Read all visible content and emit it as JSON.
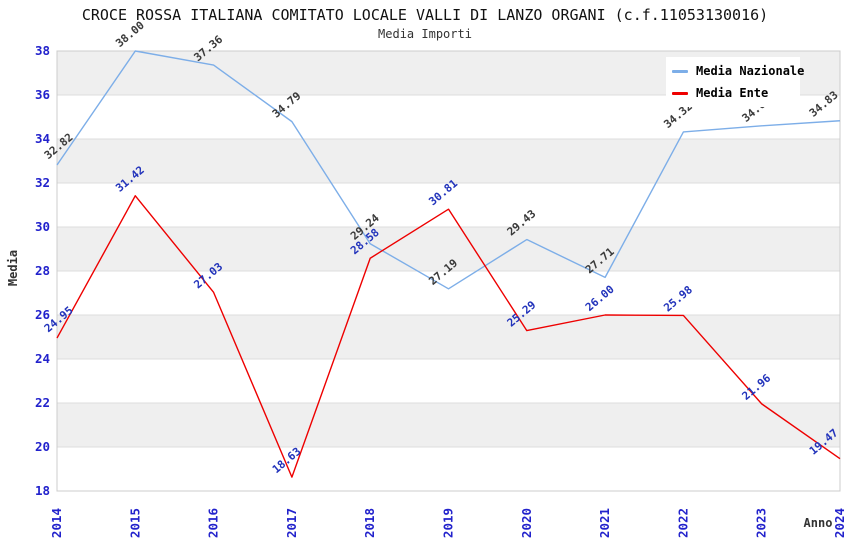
{
  "title": "CROCE ROSSA ITALIANA COMITATO LOCALE VALLI DI LANZO ORGANI (c.f.11053130016)",
  "subtitle": "Media Importi",
  "axes": {
    "y_label": "Media",
    "x_label": "Anno",
    "y_ticks": [
      18,
      20,
      22,
      24,
      26,
      28,
      30,
      32,
      34,
      36,
      38
    ],
    "x_ticks": [
      "2014",
      "2015",
      "2016",
      "2017",
      "2018",
      "2019",
      "2020",
      "2021",
      "2022",
      "2023",
      "2024"
    ],
    "tick_color": "#2222CC"
  },
  "legend": [
    {
      "name": "Media Nazionale",
      "color": "#7DAEE8"
    },
    {
      "name": "Media Ente",
      "color": "#EE0000"
    }
  ],
  "colors": {
    "stripe": "#EFEFEF",
    "grid": "#DDDDDD",
    "border": "#CCCCCC",
    "blue_line": "#7DAEE8",
    "red_line": "#EE0000",
    "blue_series_label": "#3A3A3A",
    "red_series_label": "#2233BB"
  },
  "chart_data": {
    "type": "line",
    "title": "CROCE ROSSA ITALIANA COMITATO LOCALE VALLI DI LANZO ORGANI (c.f.11053130016)",
    "subtitle": "Media Importi",
    "xlabel": "Anno",
    "ylabel": "Media",
    "x": [
      2014,
      2015,
      2016,
      2017,
      2018,
      2019,
      2020,
      2021,
      2022,
      2023,
      2024
    ],
    "ylim": [
      18,
      38
    ],
    "grid": "horizontal-bands",
    "legend_position": "top-right",
    "series": [
      {
        "name": "Media Nazionale",
        "color": "#7DAEE8",
        "label_color": "#3A3A3A",
        "values": [
          32.82,
          38.0,
          37.36,
          34.79,
          29.24,
          27.19,
          29.43,
          27.71,
          34.32,
          34.6,
          34.83
        ],
        "labels": [
          "32.82",
          "38.00",
          "37.36",
          "34.79",
          "29.24",
          "27.19",
          "29.43",
          "27.71",
          "34.32",
          "34.60",
          "34.83"
        ]
      },
      {
        "name": "Media Ente",
        "color": "#EE0000",
        "label_color": "#2233BB",
        "values": [
          24.95,
          31.42,
          27.03,
          18.63,
          28.58,
          30.81,
          25.29,
          26.0,
          25.98,
          21.96,
          19.47
        ],
        "labels": [
          "24.95",
          "31.42",
          "27.03",
          "18.63",
          "28.58",
          "30.81",
          "25.29",
          "26.00",
          "25.98",
          "21.96",
          "19.47"
        ]
      }
    ]
  }
}
